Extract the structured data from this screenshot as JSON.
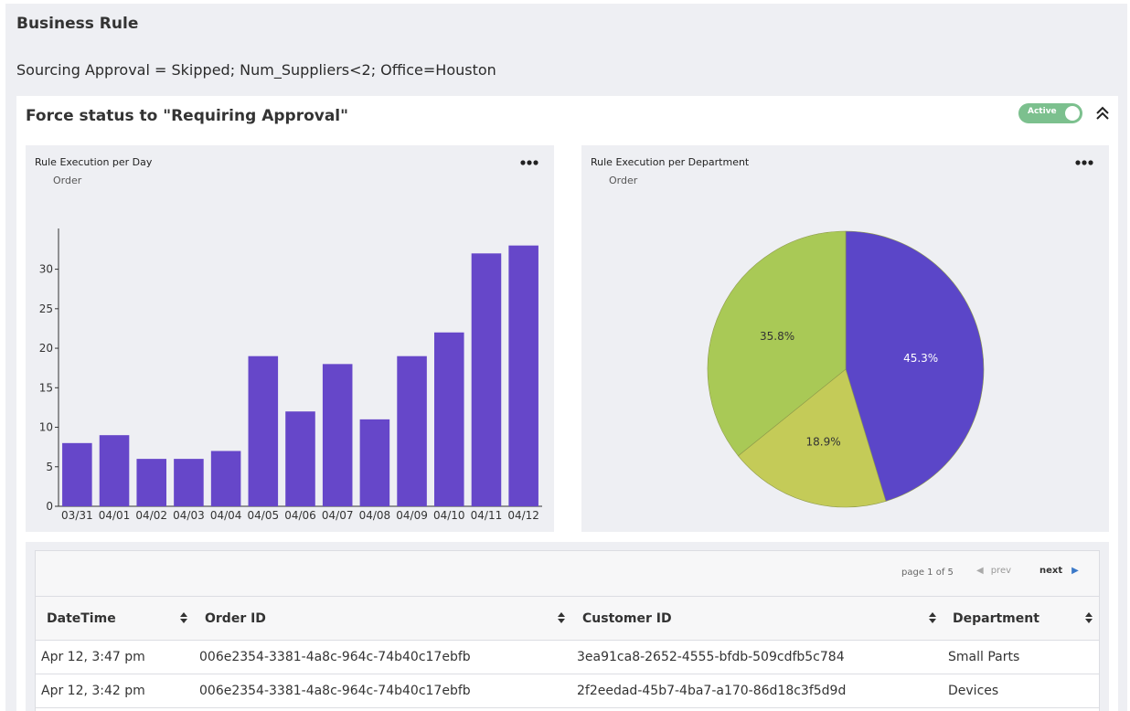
{
  "header": {
    "title": "Business Rule",
    "rule": "Sourcing Approval = Skipped; Num_Suppliers<2; Office=Houston"
  },
  "card": {
    "title": "Force status to \"Requiring Approval\"",
    "toggle_label": "Active",
    "toggle_on": true
  },
  "colors": {
    "bar": "#6647c9",
    "pie_purple": "#5b46c8",
    "pie_yellow": "#c4cb58",
    "pie_green": "#a9c956",
    "toggle": "#7cc08e",
    "next_arrow": "#3a78c8"
  },
  "chart_data": [
    {
      "type": "bar",
      "title": "Rule Execution per Day",
      "legend": "Order",
      "categories": [
        "03/31",
        "04/01",
        "04/02",
        "04/03",
        "04/04",
        "04/05",
        "04/06",
        "04/07",
        "04/08",
        "04/09",
        "04/10",
        "04/11",
        "04/12"
      ],
      "values": [
        8,
        9,
        6,
        6,
        7,
        19,
        12,
        18,
        11,
        19,
        22,
        32,
        33
      ],
      "yticks": [
        0,
        5,
        10,
        15,
        20,
        25,
        30
      ],
      "ylim": [
        0,
        34
      ],
      "grid": false
    },
    {
      "type": "pie",
      "title": "Rule Execution per Department",
      "legend": "Order",
      "values": [
        45.3,
        18.9,
        35.8
      ],
      "labels": [
        "45.3%",
        "18.9%",
        "35.8%"
      ],
      "colors": [
        "#5b46c8",
        "#c4cb58",
        "#a9c956"
      ]
    }
  ],
  "table": {
    "pager": {
      "info": "page 1 of 5",
      "prev": "prev",
      "next": "next"
    },
    "columns": [
      "DateTime",
      "Order ID",
      "Customer ID",
      "Department"
    ],
    "rows": [
      [
        "Apr 12, 3:47 pm",
        "006e2354-3381-4a8c-964c-74b40c17ebfb",
        "3ea91ca8-2652-4555-bfdb-509cdfb5c784",
        "Small Parts"
      ],
      [
        "Apr 12, 3:42 pm",
        "006e2354-3381-4a8c-964c-74b40c17ebfb",
        "2f2eedad-45b7-4ba7-a170-86d18c3f5d9d",
        "Devices"
      ]
    ]
  },
  "icons": {
    "collapse": "chevron-double-up-icon",
    "more": "more-horizontal-icon",
    "sort": "sort-icon",
    "prev": "chevron-left-icon",
    "next": "chevron-right-icon"
  }
}
